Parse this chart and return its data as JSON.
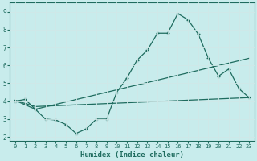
{
  "xlabel": "Humidex (Indice chaleur)",
  "ylabel": "",
  "bg_color": "#c8ecec",
  "line_color": "#1e6b5e",
  "grid_color": "#b0d8d8",
  "xlim": [
    -0.5,
    23.5
  ],
  "ylim": [
    1.8,
    9.5
  ],
  "xticks": [
    0,
    1,
    2,
    3,
    4,
    5,
    6,
    7,
    8,
    9,
    10,
    11,
    12,
    13,
    14,
    15,
    16,
    17,
    18,
    19,
    20,
    21,
    22,
    23
  ],
  "yticks": [
    2,
    3,
    4,
    5,
    6,
    7,
    8,
    9
  ],
  "line1_x": [
    0,
    1,
    2,
    3,
    4,
    5,
    6,
    7,
    8,
    9,
    10,
    11,
    12,
    13,
    14,
    15,
    16,
    17,
    18,
    19,
    20,
    21,
    22,
    23
  ],
  "line1_y": [
    4.0,
    4.1,
    3.55,
    3.0,
    2.95,
    2.7,
    2.2,
    2.45,
    3.0,
    3.0,
    4.5,
    5.3,
    6.3,
    6.85,
    7.8,
    7.8,
    8.9,
    8.55,
    7.75,
    6.4,
    5.4,
    5.8,
    4.7,
    4.2
  ],
  "line2_x": [
    0,
    2,
    23
  ],
  "line2_y": [
    4.05,
    3.7,
    4.2
  ],
  "line3_x": [
    0,
    2,
    23
  ],
  "line3_y": [
    4.05,
    3.55,
    6.4
  ]
}
